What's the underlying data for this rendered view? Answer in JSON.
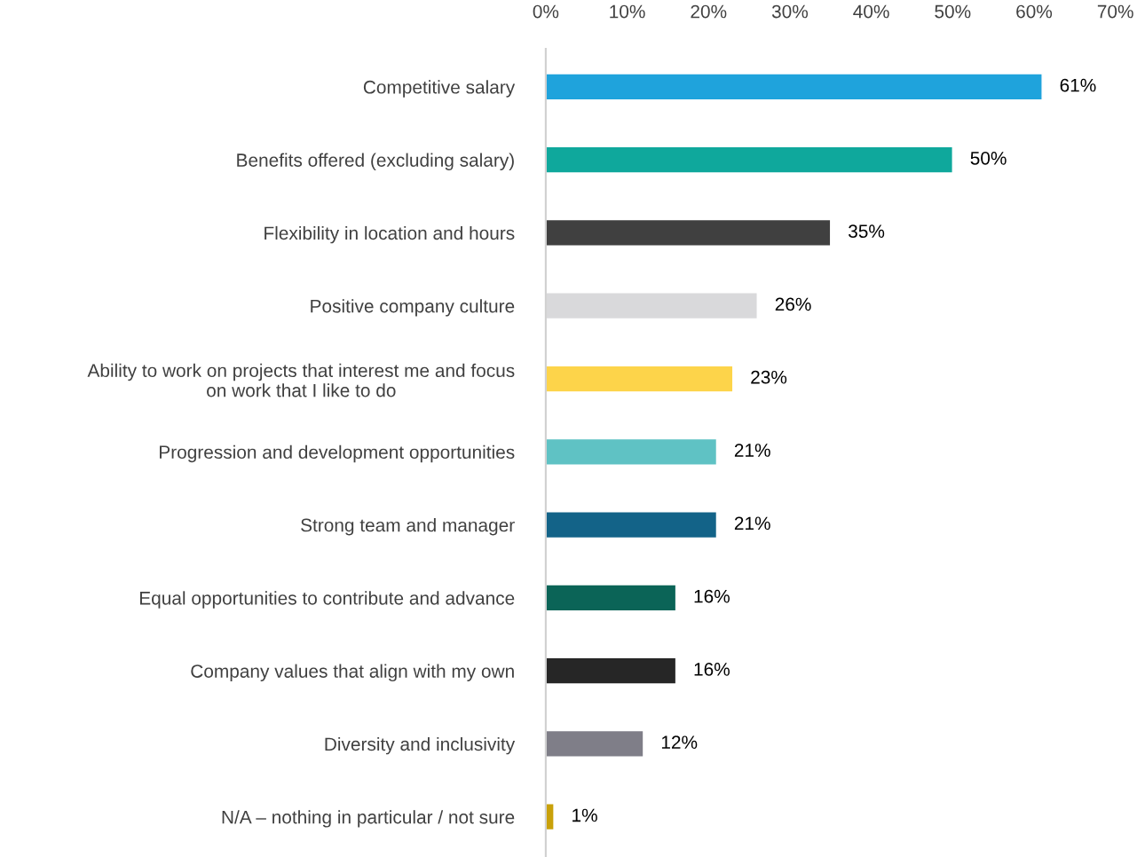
{
  "chart_data": {
    "type": "bar",
    "orientation": "horizontal",
    "categories": [
      "Competitive salary",
      "Benefits offered (excluding salary)",
      "Flexibility in location and hours",
      "Positive company culture",
      "Ability to work on projects that interest me and focus\non work that I like to do",
      "Progression and development opportunities",
      "Strong team and manager",
      "Equal opportunities to contribute and advance",
      "Company values that align with my own",
      "Diversity and inclusivity",
      "N/A – nothing in particular / not sure"
    ],
    "values": [
      61,
      50,
      35,
      26,
      23,
      21,
      21,
      16,
      16,
      12,
      1
    ],
    "value_labels": [
      "61%",
      "50%",
      "35%",
      "26%",
      "23%",
      "21%",
      "21%",
      "16%",
      "16%",
      "12%",
      "1%"
    ],
    "colors": [
      "#1fa3dc",
      "#0fa89c",
      "#404040",
      "#d9d9db",
      "#fdd44a",
      "#5fc2c4",
      "#136388",
      "#0b6457",
      "#262626",
      "#7f7e88",
      "#c9a10a"
    ],
    "xlim": [
      0,
      70
    ],
    "xticks": [
      {
        "value": 0,
        "label": "0%"
      },
      {
        "value": 10,
        "label": "10%"
      },
      {
        "value": 20,
        "label": "20%"
      },
      {
        "value": 30,
        "label": "30%"
      },
      {
        "value": 40,
        "label": "40%"
      },
      {
        "value": 50,
        "label": "50%"
      },
      {
        "value": 60,
        "label": "60%"
      },
      {
        "value": 70,
        "label": "70%"
      }
    ],
    "grid": false,
    "legend": false
  }
}
